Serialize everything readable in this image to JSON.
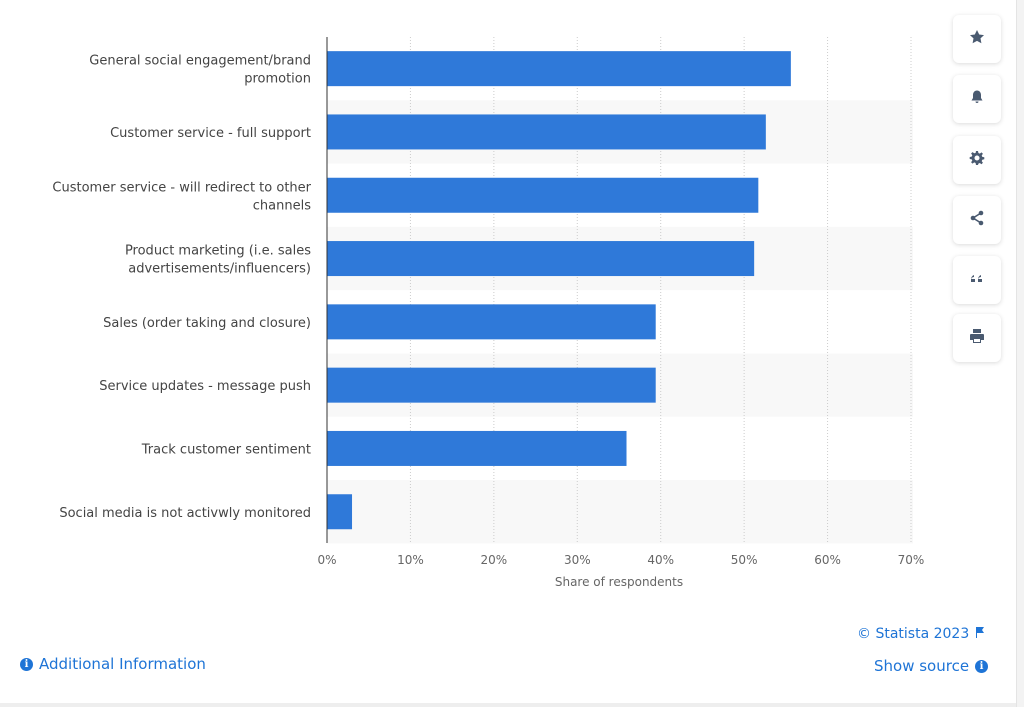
{
  "chart_data": {
    "type": "bar",
    "orientation": "horizontal",
    "categories": [
      [
        "General social engagement/brand",
        "promotion"
      ],
      [
        "Customer service - full support"
      ],
      [
        "Customer service - will redirect to other",
        "channels"
      ],
      [
        "Product marketing (i.e. sales",
        "advertisements/influencers)"
      ],
      [
        "Sales (order taking and closure)"
      ],
      [
        "Service updates - message push"
      ],
      [
        "Track customer sentiment"
      ],
      [
        "Social media is not activwly monitored"
      ]
    ],
    "values": [
      55.6,
      52.6,
      51.7,
      51.2,
      39.4,
      39.4,
      35.9,
      3.0
    ],
    "xlabel": "Share of respondents",
    "xlim": [
      0,
      70
    ],
    "xticks": [
      "0%",
      "10%",
      "20%",
      "30%",
      "40%",
      "50%",
      "60%",
      "70%"
    ],
    "grid": true,
    "bar_color": "#2f79d9"
  },
  "sidebar": {
    "icons": [
      "star-icon",
      "bell-icon",
      "gear-icon",
      "share-icon",
      "quote-icon",
      "print-icon"
    ]
  },
  "footer": {
    "additional_info": "Additional Information",
    "copyright": "© Statista 2023",
    "show_source": "Show source"
  }
}
